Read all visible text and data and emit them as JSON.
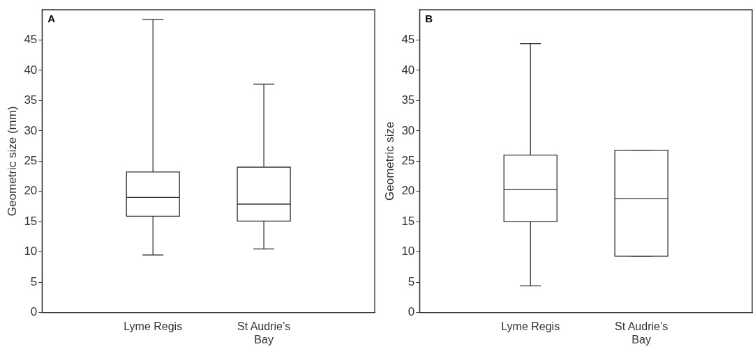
{
  "chart_data": [
    {
      "type": "box",
      "title": "A",
      "ylabel": "Geometric size (mm)",
      "categories": [
        "Lyme Regis",
        "St Audrie’s Bay"
      ],
      "ylim": [
        0,
        50
      ],
      "yticks": [
        0,
        5,
        10,
        15,
        20,
        25,
        30,
        35,
        40,
        45
      ],
      "boxes": [
        {
          "low": 9.5,
          "q1": 15.9,
          "median": 19.0,
          "q3": 23.2,
          "high": 48.4
        },
        {
          "low": 10.5,
          "q1": 15.1,
          "median": 17.9,
          "q3": 24.0,
          "high": 37.7
        }
      ]
    },
    {
      "type": "box",
      "title": "B",
      "ylabel": "Geometric size",
      "categories": [
        "Lyme Regis",
        "St Audrie’s Bay"
      ],
      "ylim": [
        0,
        50
      ],
      "yticks": [
        0,
        5,
        10,
        15,
        20,
        25,
        30,
        35,
        40,
        45
      ],
      "boxes": [
        {
          "low": 4.4,
          "q1": 15.0,
          "median": 20.3,
          "q3": 26.0,
          "high": 44.4
        },
        {
          "low": 9.3,
          "q1": 9.3,
          "median": 18.8,
          "q3": 26.8,
          "high": 26.8
        }
      ]
    }
  ]
}
